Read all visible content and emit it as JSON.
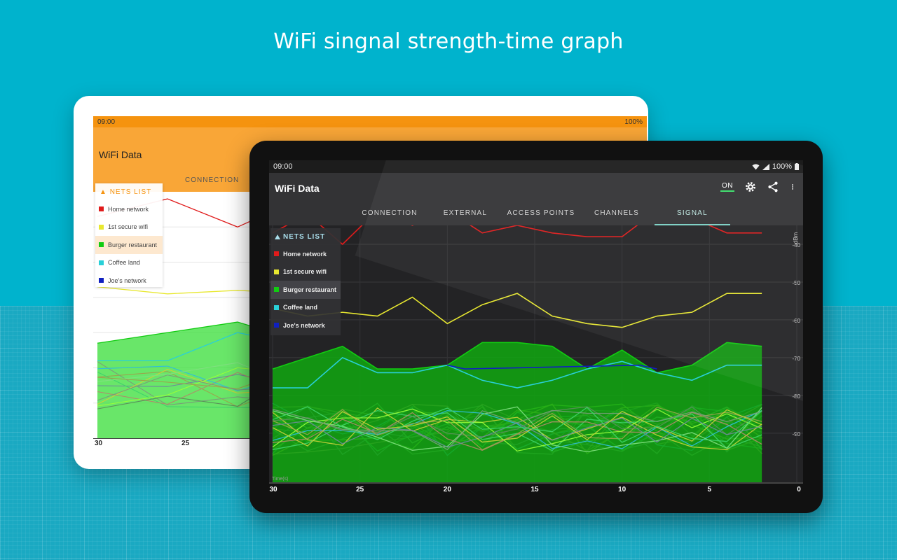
{
  "promo": {
    "title": "WiFi singnal strength-time graph"
  },
  "back_tablet": {
    "status_time": "09:00",
    "status_battery": "100%",
    "app_title": "WiFi Data",
    "tab_label": "CONNECTION",
    "nets_header": "NETS LIST",
    "x_ticks": [
      "30",
      "25"
    ]
  },
  "status_bar": {
    "time": "09:00",
    "battery": "100%"
  },
  "app": {
    "title": "WiFi Data",
    "toggle_label": "ON",
    "icons": [
      "settings-icon",
      "share-icon",
      "more-vert-icon"
    ],
    "tabs": [
      {
        "label": "CONNECTION",
        "active": false
      },
      {
        "label": "EXTERNAL",
        "active": false
      },
      {
        "label": "ACCESS POINTS",
        "active": false
      },
      {
        "label": "CHANNELS",
        "active": false
      },
      {
        "label": "SIGNAL",
        "active": true
      }
    ]
  },
  "nets_list": {
    "header": "NETS LIST",
    "items": [
      {
        "name": "Home network",
        "color": "#e01b1b",
        "selected": false
      },
      {
        "name": "1st secure wifi",
        "color": "#e8e830",
        "selected": false
      },
      {
        "name": "Burger restaurant",
        "color": "#11cc11",
        "selected": true
      },
      {
        "name": "Coffee land",
        "color": "#29d0d8",
        "selected": false
      },
      {
        "name": "Joe's network",
        "color": "#1020c0",
        "selected": false
      }
    ]
  },
  "chart_data": {
    "type": "line",
    "y_unit": "dBm",
    "x_unit": "Time(s)",
    "x_ticks": [
      30,
      25,
      20,
      15,
      10,
      5,
      0
    ],
    "y_ticks": [
      -40,
      -50,
      -60,
      -70,
      -80,
      -90
    ],
    "xlim": [
      30,
      0
    ],
    "ylim": [
      -35,
      -103
    ],
    "series": [
      {
        "name": "Home network",
        "color": "#e01b1b",
        "x": [
          30,
          28,
          26,
          24,
          22,
          20,
          18,
          16,
          14,
          12,
          10,
          8,
          6,
          4,
          2
        ],
        "y": [
          -37,
          -32,
          -40,
          -31,
          -35,
          -31,
          -37,
          -35,
          -37,
          -38,
          -38,
          -31,
          -33,
          -37,
          -37
        ]
      },
      {
        "name": "1st secure wifi",
        "color": "#e8e830",
        "x": [
          30,
          28,
          26,
          24,
          22,
          20,
          18,
          16,
          14,
          12,
          10,
          8,
          6,
          4,
          2
        ],
        "y": [
          -57,
          -59,
          -58,
          -59,
          -54,
          -61,
          -56,
          -53,
          -59,
          -61,
          -62,
          -59,
          -58,
          -53,
          -53
        ]
      },
      {
        "name": "Burger restaurant",
        "color": "#11cc11",
        "x": [
          30,
          28,
          26,
          24,
          22,
          20,
          18,
          16,
          14,
          12,
          10,
          8,
          6,
          4,
          2
        ],
        "y": [
          -73,
          -70,
          -67,
          -73,
          -73,
          -72,
          -66,
          -66,
          -67,
          -73,
          -68,
          -74,
          -72,
          -66,
          -67
        ]
      },
      {
        "name": "Coffee land",
        "color": "#29d0d8",
        "x": [
          30,
          28,
          26,
          24,
          22,
          20,
          18,
          16,
          14,
          12,
          10,
          8,
          6,
          4,
          2
        ],
        "y": [
          -78,
          -78,
          -70,
          -74,
          -74,
          -72,
          -76,
          -78,
          -76,
          -73,
          -71,
          -74,
          -76,
          -72,
          -72
        ]
      },
      {
        "name": "Joe's network",
        "color": "#1020c0",
        "x": [
          20,
          19,
          9,
          8
        ],
        "y": [
          -72,
          -73,
          -72,
          -73
        ]
      }
    ]
  }
}
